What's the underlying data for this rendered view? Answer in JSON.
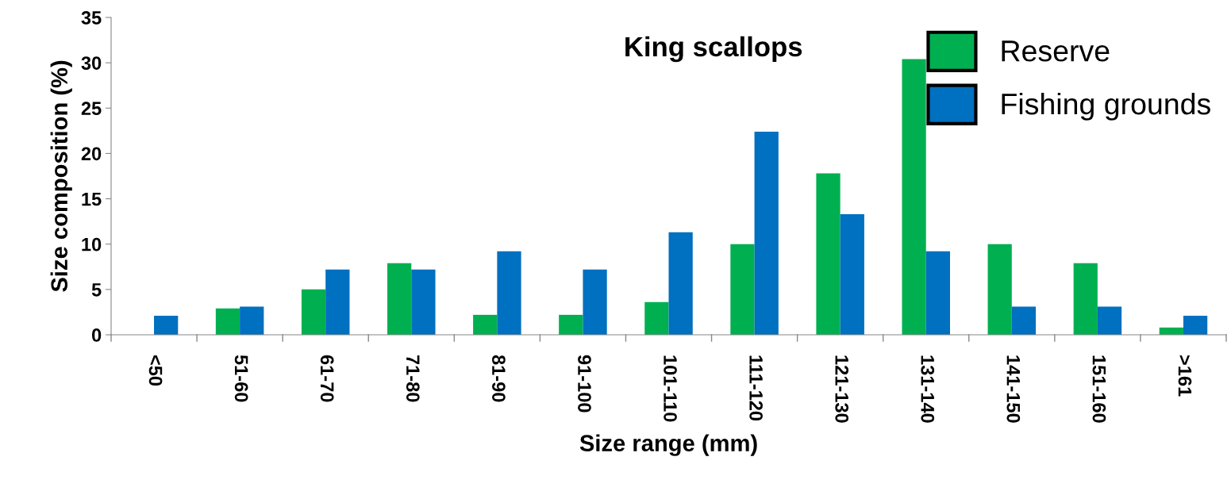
{
  "chart_data": {
    "type": "bar",
    "title": "King scallops",
    "xlabel": "Size range (mm)",
    "ylabel": "Size composition (%)",
    "categories": [
      "<50",
      "51-60",
      "61-70",
      "71-80",
      "81-90",
      "91-100",
      "101-110",
      "111-120",
      "121-130",
      "131-140",
      "141-150",
      "151-160",
      ">161"
    ],
    "series": [
      {
        "name": "Reserve",
        "color": "#00b050",
        "values": [
          0,
          2.9,
          5.0,
          7.9,
          2.2,
          2.2,
          3.6,
          10.0,
          17.8,
          30.4,
          10.0,
          7.9,
          0.8
        ]
      },
      {
        "name": "Fishing grounds",
        "color": "#0070c0",
        "values": [
          2.1,
          3.1,
          7.2,
          7.2,
          9.2,
          7.2,
          11.3,
          22.4,
          13.3,
          9.2,
          3.1,
          3.1,
          2.1
        ]
      }
    ],
    "ylim": [
      0,
      35
    ],
    "yticks": [
      0,
      5,
      10,
      15,
      20,
      25,
      30,
      35
    ],
    "grid": false,
    "legend": "top right"
  }
}
